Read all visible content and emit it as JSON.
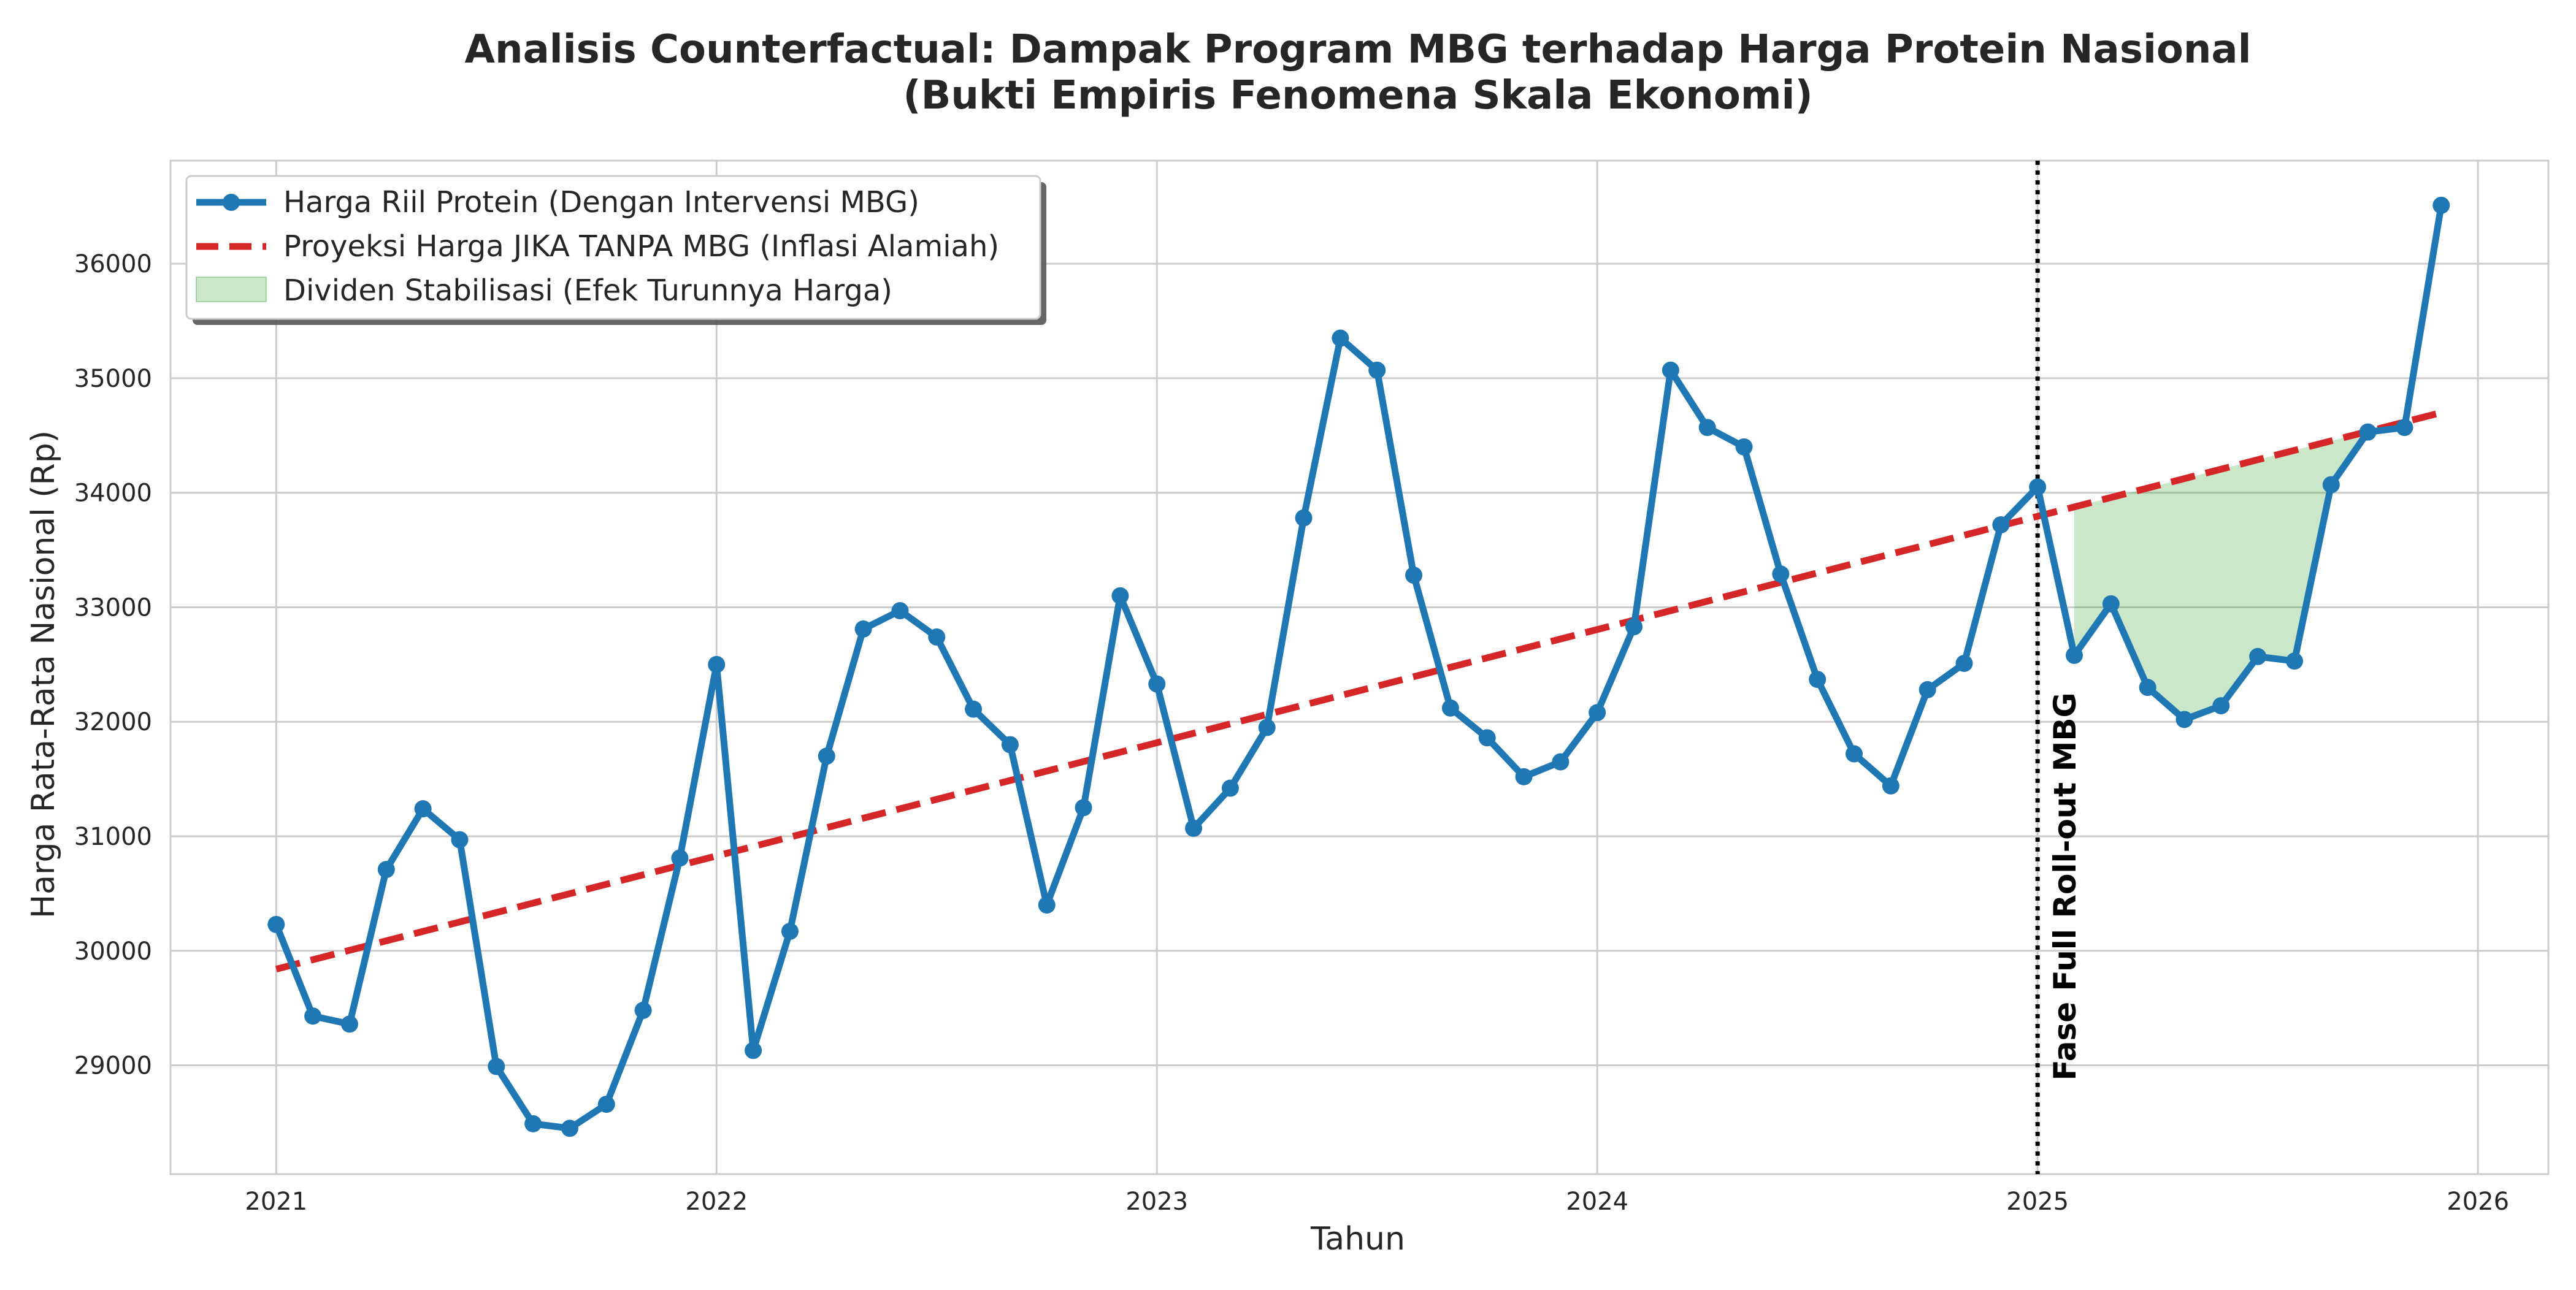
{
  "chart_data": {
    "type": "line",
    "title": "Analisis Counterfactual: Dampak Program MBG terhadap Harga Protein Nasional",
    "subtitle": "(Bukti Empiris Fenomena Skala Ekonomi)",
    "xlabel": "Tahun",
    "ylabel": "Harga Rata-Rata Nasional (Rp)",
    "xlim": [
      2020.76,
      2026.16
    ],
    "ylim": [
      28050,
      36900
    ],
    "x_ticks": [
      2021,
      2022,
      2023,
      2024,
      2025,
      2026
    ],
    "x_tick_labels": [
      "2021",
      "2022",
      "2023",
      "2024",
      "2025",
      "2026"
    ],
    "y_ticks": [
      29000,
      30000,
      31000,
      32000,
      33000,
      34000,
      35000,
      36000
    ],
    "y_tick_labels": [
      "29000",
      "30000",
      "31000",
      "32000",
      "33000",
      "34000",
      "35000",
      "36000"
    ],
    "grid": true,
    "legend_position": "top-left",
    "colors": {
      "actual": "#1f77b4",
      "projection": "#d62728",
      "fill": "#2ca02c",
      "event": "#000000"
    },
    "series": [
      {
        "name": "Harga Riil Protein (Dengan Intervensi MBG)",
        "style": "solid-line-with-markers",
        "x": [
          "2021-01",
          "2021-02",
          "2021-03",
          "2021-04",
          "2021-05",
          "2021-06",
          "2021-07",
          "2021-08",
          "2021-09",
          "2021-10",
          "2021-11",
          "2021-12",
          "2022-01",
          "2022-02",
          "2022-03",
          "2022-04",
          "2022-05",
          "2022-06",
          "2022-07",
          "2022-08",
          "2022-09",
          "2022-10",
          "2022-11",
          "2022-12",
          "2023-01",
          "2023-02",
          "2023-03",
          "2023-04",
          "2023-05",
          "2023-06",
          "2023-07",
          "2023-08",
          "2023-09",
          "2023-10",
          "2023-11",
          "2023-12",
          "2024-01",
          "2024-02",
          "2024-03",
          "2024-04",
          "2024-05",
          "2024-06",
          "2024-07",
          "2024-08",
          "2024-09",
          "2024-10",
          "2024-11",
          "2024-12",
          "2025-01",
          "2025-02",
          "2025-03",
          "2025-04",
          "2025-05",
          "2025-06",
          "2025-07",
          "2025-08",
          "2025-09",
          "2025-10",
          "2025-11",
          "2025-12"
        ],
        "y": [
          30230,
          29430,
          29360,
          30710,
          31240,
          30970,
          28990,
          28490,
          28450,
          28660,
          29480,
          30810,
          32500,
          29130,
          30170,
          31700,
          32810,
          32970,
          32740,
          32110,
          31800,
          30400,
          31250,
          33100,
          32330,
          31070,
          31420,
          31950,
          33780,
          35350,
          35070,
          33280,
          32120,
          31860,
          31520,
          31650,
          32080,
          32830,
          35070,
          34570,
          34400,
          33290,
          32370,
          31720,
          31440,
          32280,
          32510,
          33720,
          34050,
          32580,
          33030,
          32300,
          32020,
          32140,
          32570,
          32530,
          34070,
          34530,
          34570,
          36510
        ]
      },
      {
        "name": "Proyeksi Harga JIKA TANPA MBG (Inflasi Alamiah)",
        "style": "dashed-line",
        "x": [
          "2021-01",
          "2025-12"
        ],
        "y": [
          29840,
          34700
        ]
      }
    ],
    "fill_region": {
      "name": "Dividen Stabilisasi (Efek Turunnya Harga)",
      "between": "projection-and-actual",
      "x_from": "2025-02",
      "x_to": "2025-11"
    },
    "annotations": [
      {
        "type": "vertical-line",
        "x": "2025-01",
        "style": "dotted",
        "label": "Fase Full Roll-out MBG"
      }
    ]
  }
}
